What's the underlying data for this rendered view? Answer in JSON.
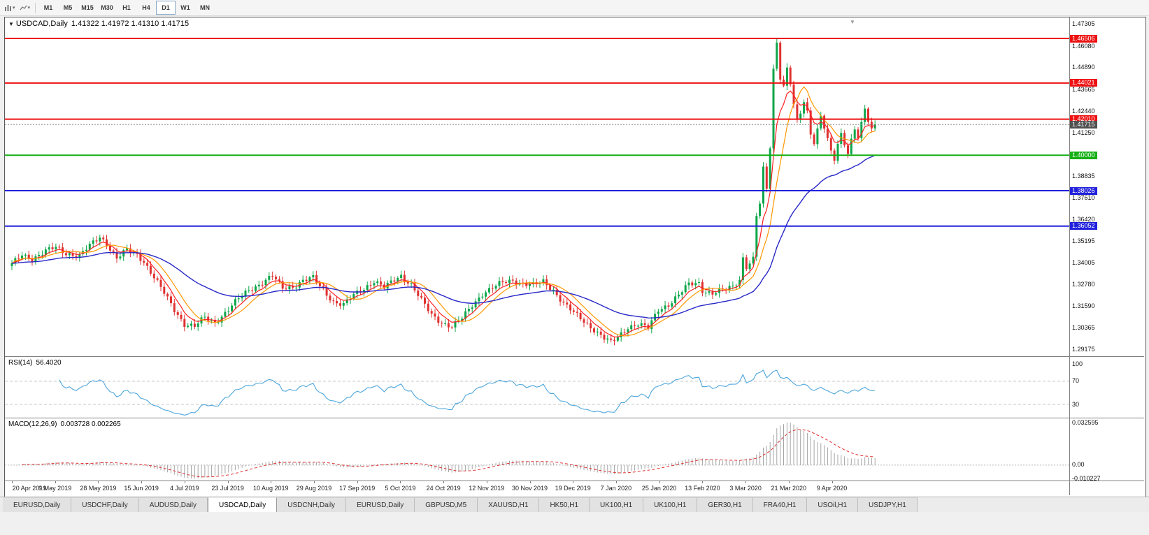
{
  "icons": {
    "caret_down": "▾",
    "triangle_down": "▼"
  },
  "toolbar": {
    "timeframes": [
      {
        "label": "M1",
        "selected": false
      },
      {
        "label": "M5",
        "selected": false
      },
      {
        "label": "M15",
        "selected": false
      },
      {
        "label": "M30",
        "selected": false
      },
      {
        "label": "H1",
        "selected": false
      },
      {
        "label": "H4",
        "selected": false
      },
      {
        "label": "D1",
        "selected": true
      },
      {
        "label": "W1",
        "selected": false
      },
      {
        "label": "MN",
        "selected": false
      }
    ]
  },
  "window": {
    "title_symbol": "USDCAD,Daily",
    "title_ohlc": "1.41322 1.41972 1.41310 1.41715"
  },
  "price_axis": {
    "ticks": [
      "1.47305",
      "1.46080",
      "1.44890",
      "1.43665",
      "1.42440",
      "1.41250",
      "1.38835",
      "1.37610",
      "1.36420",
      "1.35195",
      "1.34005",
      "1.32780",
      "1.31590",
      "1.30365",
      "1.29175"
    ],
    "badges": [
      {
        "value": "1.46506",
        "price": 1.46506,
        "color": "#ee1111"
      },
      {
        "value": "1.44021",
        "price": 1.44021,
        "color": "#ee1111"
      },
      {
        "value": "1.42010",
        "price": 1.4201,
        "color": "#ee1111"
      },
      {
        "value": "1.41715",
        "price": 1.41715,
        "color": "#505050"
      },
      {
        "value": "1.40000",
        "price": 1.4,
        "color": "#14b014"
      },
      {
        "value": "1.38026",
        "price": 1.38026,
        "color": "#2020dd"
      },
      {
        "value": "1.36052",
        "price": 1.36052,
        "color": "#2020dd"
      }
    ]
  },
  "hlines": [
    {
      "price": 1.46506,
      "color": "#ee1111",
      "width": 2
    },
    {
      "price": 1.44021,
      "color": "#ee1111",
      "width": 2
    },
    {
      "price": 1.4201,
      "color": "#ee1111",
      "width": 2
    },
    {
      "price": 1.4,
      "color": "#14b014",
      "width": 2
    },
    {
      "price": 1.38026,
      "color": "#2020dd",
      "width": 2
    },
    {
      "price": 1.36052,
      "color": "#2020dd",
      "width": 2
    }
  ],
  "current_price": {
    "label": "1.41715",
    "price": 1.41715
  },
  "rsi": {
    "title": "RSI(14)",
    "value": "56.4020",
    "period": 14,
    "color": "#4da6dc",
    "dashed": [
      70,
      30
    ],
    "axis_labels": [
      {
        "v": 100,
        "label": "100"
      },
      {
        "v": 70,
        "label": "70"
      },
      {
        "v": 30,
        "label": "30"
      }
    ]
  },
  "macd": {
    "title": "MACD(12,26,9)",
    "values": "0.003728 0.002265",
    "fast": 12,
    "slow": 26,
    "signal": 9,
    "hist_color": "#a4a4a4",
    "signal_color": "#e03131",
    "axis_max": 0.032595,
    "axis_min": -0.010227,
    "axis_labels": [
      {
        "v": 0.032595,
        "label": "0.032595"
      },
      {
        "v": 0,
        "label": "0.00"
      },
      {
        "v": -0.010227,
        "label": "-0.010227"
      }
    ]
  },
  "x_axis": {
    "labels": [
      "20 Apr 2019",
      "9 May 2019",
      "28 May 2019",
      "15 Jun 2019",
      "4 Jul 2019",
      "23 Jul 2019",
      "10 Aug 2019",
      "29 Aug 2019",
      "17 Sep 2019",
      "5 Oct 2019",
      "24 Oct 2019",
      "12 Nov 2019",
      "30 Nov 2019",
      "19 Dec 2019",
      "7 Jan 2020",
      "25 Jan 2020",
      "13 Feb 2020",
      "3 Mar 2020",
      "21 Mar 2020",
      "9 Apr 2020"
    ]
  },
  "tabs": [
    {
      "label": "EURUSD,Daily",
      "active": false
    },
    {
      "label": "USDCHF,Daily",
      "active": false
    },
    {
      "label": "AUDUSD,Daily",
      "active": false
    },
    {
      "label": "USDCAD,Daily",
      "active": true
    },
    {
      "label": "USDCNH,Daily",
      "active": false
    },
    {
      "label": "EURUSD,Daily",
      "active": false
    },
    {
      "label": "GBPUSD,M5",
      "active": false
    },
    {
      "label": "XAUUSD,H1",
      "active": false
    },
    {
      "label": "HK50,H1",
      "active": false
    },
    {
      "label": "UK100,H1",
      "active": false
    },
    {
      "label": "UK100,H1",
      "active": false
    },
    {
      "label": "GER30,H1",
      "active": false
    },
    {
      "label": "FRA40,H1",
      "active": false
    },
    {
      "label": "USOil,H1",
      "active": false
    },
    {
      "label": "USDJPY,H1",
      "active": false
    }
  ],
  "chart_data": {
    "type": "candlestick",
    "symbol": "USDCAD",
    "timeframe": "Daily",
    "bars": 256,
    "price_range": {
      "top": 1.47305,
      "bottom": 1.29175
    },
    "up_color": "#0ca649",
    "down_color": "#e03131",
    "ma": [
      {
        "name": "fast-ma",
        "type": "ema",
        "period": 6,
        "color": "#ff2020",
        "width": 1.2
      },
      {
        "name": "mid-ma",
        "type": "sma",
        "period": 10,
        "color": "#ff9800",
        "width": 1.2
      },
      {
        "name": "slow-ma",
        "type": "ema",
        "period": 40,
        "color": "#2828c8",
        "width": 1.4
      }
    ],
    "close_anchors": [
      [
        0,
        1.339
      ],
      [
        3,
        1.3445
      ],
      [
        6,
        1.3425
      ],
      [
        10,
        1.3465
      ],
      [
        13,
        1.3485
      ],
      [
        16,
        1.3455
      ],
      [
        20,
        1.344
      ],
      [
        23,
        1.3495
      ],
      [
        26,
        1.3545
      ],
      [
        28,
        1.351
      ],
      [
        31,
        1.3425
      ],
      [
        34,
        1.347
      ],
      [
        37,
        1.3445
      ],
      [
        39,
        1.341
      ],
      [
        42,
        1.332
      ],
      [
        45,
        1.323
      ],
      [
        48,
        1.314
      ],
      [
        51,
        1.306
      ],
      [
        54,
        1.3045
      ],
      [
        57,
        1.3095
      ],
      [
        60,
        1.307
      ],
      [
        64,
        1.314
      ],
      [
        67,
        1.32
      ],
      [
        70,
        1.325
      ],
      [
        73,
        1.328
      ],
      [
        77,
        1.3325
      ],
      [
        80,
        1.326
      ],
      [
        83,
        1.327
      ],
      [
        86,
        1.33
      ],
      [
        89,
        1.3315
      ],
      [
        92,
        1.325
      ],
      [
        95,
        1.3185
      ],
      [
        98,
        1.3165
      ],
      [
        101,
        1.322
      ],
      [
        104,
        1.326
      ],
      [
        107,
        1.33
      ],
      [
        110,
        1.326
      ],
      [
        113,
        1.3305
      ],
      [
        115,
        1.333
      ],
      [
        118,
        1.328
      ],
      [
        121,
        1.319
      ],
      [
        124,
        1.311
      ],
      [
        127,
        1.307
      ],
      [
        130,
        1.3045
      ],
      [
        133,
        1.309
      ],
      [
        136,
        1.3165
      ],
      [
        139,
        1.323
      ],
      [
        142,
        1.326
      ],
      [
        145,
        1.329
      ],
      [
        148,
        1.3305
      ],
      [
        151,
        1.3285
      ],
      [
        154,
        1.3275
      ],
      [
        157,
        1.3295
      ],
      [
        160,
        1.325
      ],
      [
        163,
        1.3175
      ],
      [
        166,
        1.312
      ],
      [
        169,
        1.3075
      ],
      [
        172,
        1.303
      ],
      [
        175,
        1.298
      ],
      [
        177,
        1.2955
      ],
      [
        179,
        1.2985
      ],
      [
        182,
        1.3045
      ],
      [
        185,
        1.306
      ],
      [
        188,
        1.3035
      ],
      [
        191,
        1.314
      ],
      [
        194,
        1.317
      ],
      [
        197,
        1.322
      ],
      [
        200,
        1.328
      ],
      [
        203,
        1.329
      ],
      [
        204,
        1.325
      ],
      [
        207,
        1.323
      ],
      [
        210,
        1.3245
      ],
      [
        213,
        1.327
      ],
      [
        215,
        1.331
      ],
      [
        216,
        1.343
      ],
      [
        217,
        1.338
      ],
      [
        219,
        1.342
      ],
      [
        220,
        1.366
      ],
      [
        221,
        1.373
      ],
      [
        222,
        1.392
      ],
      [
        223,
        1.381
      ],
      [
        224,
        1.405
      ],
      [
        225,
        1.448
      ],
      [
        226,
        1.463
      ],
      [
        227,
        1.444
      ],
      [
        228,
        1.439
      ],
      [
        229,
        1.448
      ],
      [
        230,
        1.44
      ],
      [
        231,
        1.428
      ],
      [
        232,
        1.418
      ],
      [
        233,
        1.423
      ],
      [
        234,
        1.43
      ],
      [
        235,
        1.424
      ],
      [
        236,
        1.412
      ],
      [
        237,
        1.408
      ],
      [
        238,
        1.415
      ],
      [
        239,
        1.422
      ],
      [
        240,
        1.416
      ],
      [
        241,
        1.409
      ],
      [
        242,
        1.401
      ],
      [
        243,
        1.397
      ],
      [
        244,
        1.406
      ],
      [
        245,
        1.411
      ],
      [
        246,
        1.406
      ],
      [
        247,
        1.402
      ],
      [
        248,
        1.409
      ],
      [
        249,
        1.415
      ],
      [
        250,
        1.411
      ],
      [
        251,
        1.418
      ],
      [
        252,
        1.425
      ],
      [
        253,
        1.419
      ],
      [
        254,
        1.414
      ],
      [
        255,
        1.41715
      ]
    ],
    "indicators": [
      {
        "name": "RSI",
        "period": 14,
        "last_value": "56.4020"
      },
      {
        "name": "MACD",
        "params": "12,26,9",
        "last_values": "0.003728 0.002265"
      }
    ]
  }
}
